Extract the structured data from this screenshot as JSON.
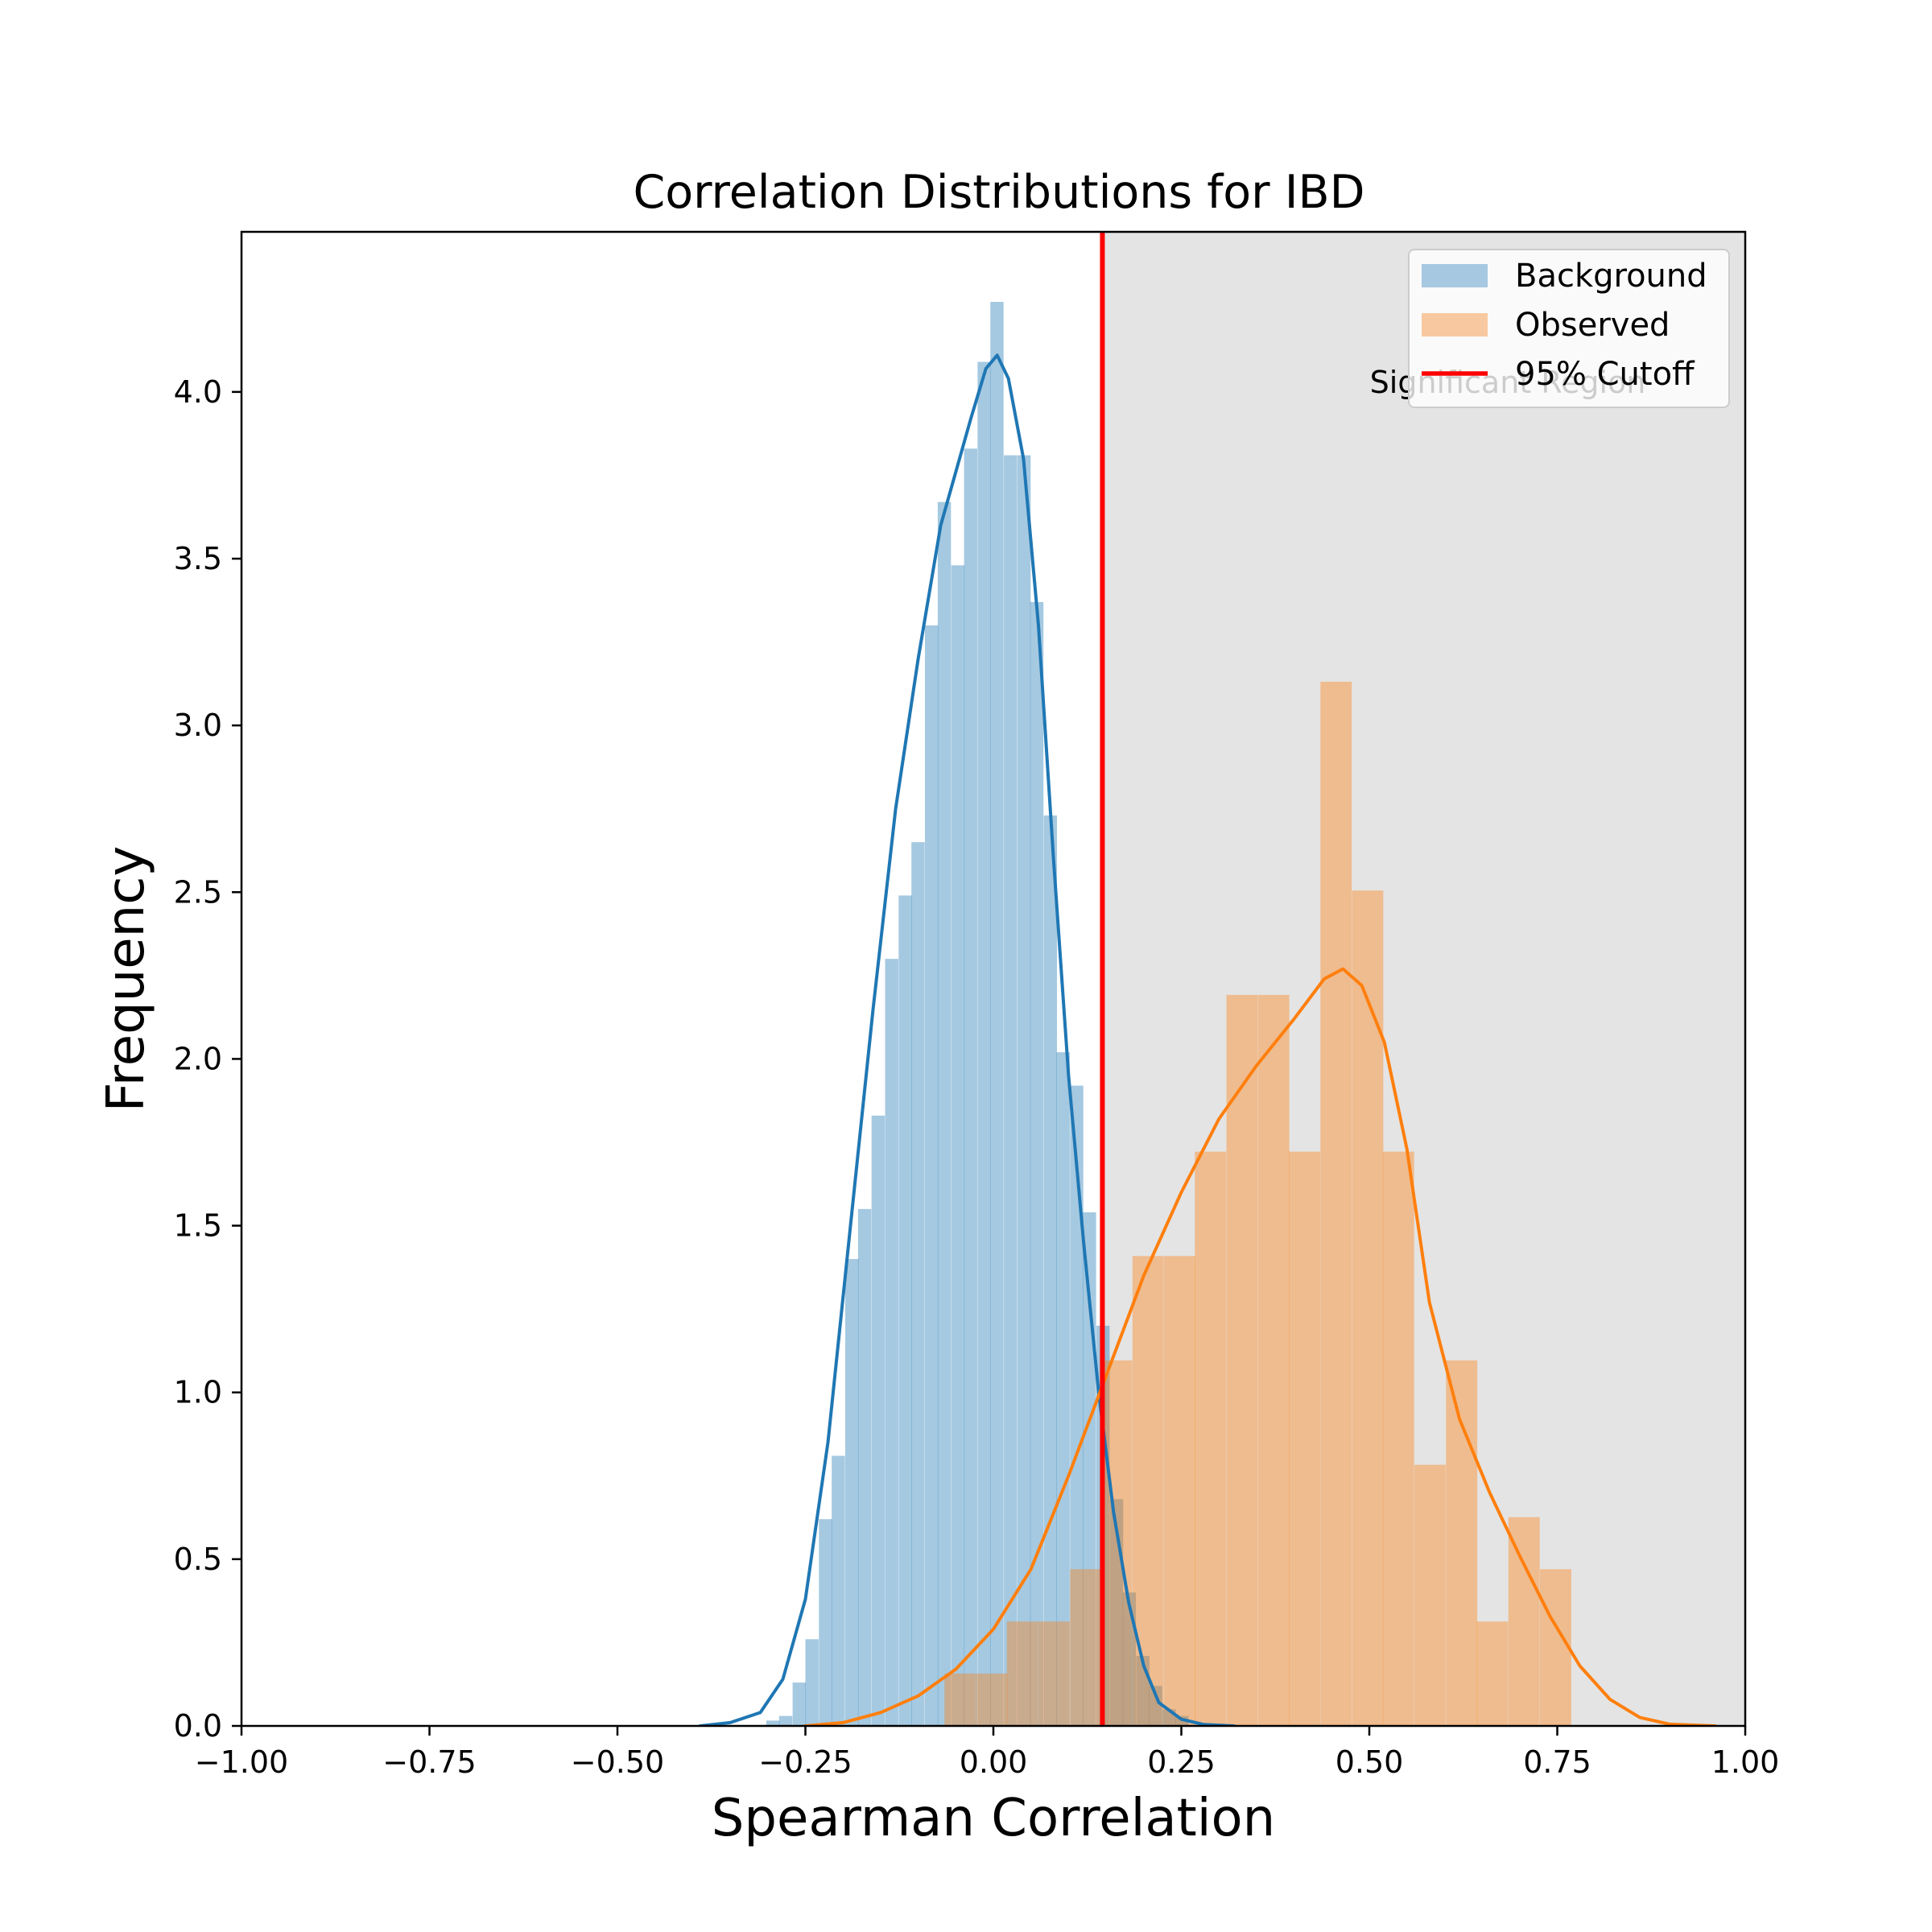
{
  "chart_data": {
    "type": "histogram",
    "title": "Correlation Distributions for IBD",
    "xlabel": "Spearman Correlation",
    "ylabel": "Frequency",
    "xlim": [
      -1.0,
      1.0
    ],
    "ylim": [
      0,
      4.48
    ],
    "xticks": [
      "−1.00",
      "−0.75",
      "−0.50",
      "−0.25",
      "0.00",
      "0.25",
      "0.50",
      "0.75",
      "1.00"
    ],
    "xtick_values": [
      -1.0,
      -0.75,
      -0.5,
      -0.25,
      0.0,
      0.25,
      0.5,
      0.75,
      1.0
    ],
    "yticks": [
      "0.0",
      "0.5",
      "1.0",
      "1.5",
      "2.0",
      "2.5",
      "3.0",
      "3.5",
      "4.0"
    ],
    "ytick_values": [
      0,
      0.5,
      1.0,
      1.5,
      2.0,
      2.5,
      3.0,
      3.5,
      4.0
    ],
    "shaded_region": {
      "x0": 0.145,
      "x1": 1.0,
      "label": "Significant Region",
      "color": "#e4e4e4"
    },
    "cutoff": {
      "x": 0.145,
      "label": "95% Cutoff",
      "color": "#ff0000"
    },
    "legend_position": "top-right",
    "series": [
      {
        "name": "Background",
        "kind": "histogram",
        "color": "#1f77b4",
        "alpha": 0.4,
        "bin_width": 0.0176,
        "bins": [
          [
            -0.302,
            0.016
          ],
          [
            -0.285,
            0.03
          ],
          [
            -0.267,
            0.13
          ],
          [
            -0.25,
            0.26
          ],
          [
            -0.232,
            0.62
          ],
          [
            -0.215,
            0.81
          ],
          [
            -0.197,
            1.4
          ],
          [
            -0.18,
            1.55
          ],
          [
            -0.162,
            1.83
          ],
          [
            -0.144,
            2.3
          ],
          [
            -0.126,
            2.49
          ],
          [
            -0.109,
            2.65
          ],
          [
            -0.091,
            3.3
          ],
          [
            -0.074,
            3.67
          ],
          [
            -0.056,
            3.48
          ],
          [
            -0.039,
            3.83
          ],
          [
            -0.021,
            4.09
          ],
          [
            -0.004,
            4.27
          ],
          [
            0.014,
            3.81
          ],
          [
            0.032,
            3.81
          ],
          [
            0.049,
            3.37
          ],
          [
            0.067,
            2.73
          ],
          [
            0.084,
            2.02
          ],
          [
            0.102,
            1.92
          ],
          [
            0.119,
            1.54
          ],
          [
            0.137,
            1.2
          ],
          [
            0.155,
            0.68
          ],
          [
            0.172,
            0.4
          ],
          [
            0.19,
            0.21
          ],
          [
            0.207,
            0.12
          ],
          [
            0.225,
            0.05
          ],
          [
            0.242,
            0.03
          ]
        ]
      },
      {
        "name": "Observed",
        "kind": "histogram",
        "color": "#ff7f0e",
        "alpha": 0.4,
        "bin_width": 0.0416,
        "bins": [
          [
            -0.065,
            0.157
          ],
          [
            -0.023,
            0.157
          ],
          [
            0.018,
            0.313
          ],
          [
            0.06,
            0.313
          ],
          [
            0.102,
            0.47
          ],
          [
            0.143,
            1.096
          ],
          [
            0.185,
            1.409
          ],
          [
            0.227,
            1.409
          ],
          [
            0.268,
            1.722
          ],
          [
            0.31,
            2.192
          ],
          [
            0.352,
            2.192
          ],
          [
            0.393,
            1.722
          ],
          [
            0.435,
            3.131
          ],
          [
            0.477,
            2.505
          ],
          [
            0.518,
            1.722
          ],
          [
            0.56,
            0.783
          ],
          [
            0.602,
            1.096
          ],
          [
            0.643,
            0.313
          ],
          [
            0.685,
            0.626
          ],
          [
            0.727,
            0.47
          ]
        ]
      }
    ],
    "kde": [
      {
        "series": "Background",
        "color": "#1f77b4",
        "points": [
          [
            -0.39,
            0.0
          ],
          [
            -0.35,
            0.01
          ],
          [
            -0.31,
            0.04
          ],
          [
            -0.28,
            0.14
          ],
          [
            -0.25,
            0.38
          ],
          [
            -0.22,
            0.85
          ],
          [
            -0.19,
            1.5
          ],
          [
            -0.16,
            2.15
          ],
          [
            -0.13,
            2.75
          ],
          [
            -0.1,
            3.2
          ],
          [
            -0.07,
            3.6
          ],
          [
            -0.05,
            3.76
          ],
          [
            -0.03,
            3.92
          ],
          [
            -0.01,
            4.07
          ],
          [
            0.005,
            4.11
          ],
          [
            0.02,
            4.04
          ],
          [
            0.04,
            3.8
          ],
          [
            0.06,
            3.3
          ],
          [
            0.08,
            2.6
          ],
          [
            0.1,
            1.95
          ],
          [
            0.12,
            1.45
          ],
          [
            0.14,
            1.0
          ],
          [
            0.16,
            0.64
          ],
          [
            0.18,
            0.37
          ],
          [
            0.2,
            0.18
          ],
          [
            0.22,
            0.07
          ],
          [
            0.25,
            0.02
          ],
          [
            0.28,
            0.004
          ],
          [
            0.32,
            0.0
          ]
        ]
      },
      {
        "series": "Observed",
        "color": "#ff7f0e",
        "points": [
          [
            -0.25,
            0.0
          ],
          [
            -0.2,
            0.01
          ],
          [
            -0.15,
            0.04
          ],
          [
            -0.1,
            0.09
          ],
          [
            -0.05,
            0.17
          ],
          [
            0.0,
            0.29
          ],
          [
            0.05,
            0.47
          ],
          [
            0.1,
            0.75
          ],
          [
            0.15,
            1.05
          ],
          [
            0.2,
            1.35
          ],
          [
            0.25,
            1.6
          ],
          [
            0.3,
            1.82
          ],
          [
            0.35,
            1.98
          ],
          [
            0.4,
            2.12
          ],
          [
            0.44,
            2.24
          ],
          [
            0.465,
            2.27
          ],
          [
            0.49,
            2.22
          ],
          [
            0.52,
            2.05
          ],
          [
            0.55,
            1.73
          ],
          [
            0.58,
            1.27
          ],
          [
            0.62,
            0.92
          ],
          [
            0.66,
            0.7
          ],
          [
            0.7,
            0.51
          ],
          [
            0.74,
            0.33
          ],
          [
            0.78,
            0.18
          ],
          [
            0.82,
            0.08
          ],
          [
            0.86,
            0.025
          ],
          [
            0.9,
            0.005
          ],
          [
            0.96,
            0.0
          ]
        ]
      }
    ]
  },
  "legend": {
    "items": [
      {
        "label": "Background",
        "kind": "patch",
        "color": "#a6c8e1"
      },
      {
        "label": "Observed",
        "kind": "patch",
        "color": "#f8c9a0"
      },
      {
        "label": "95% Cutoff",
        "kind": "line",
        "color": "#ff0000"
      }
    ]
  }
}
